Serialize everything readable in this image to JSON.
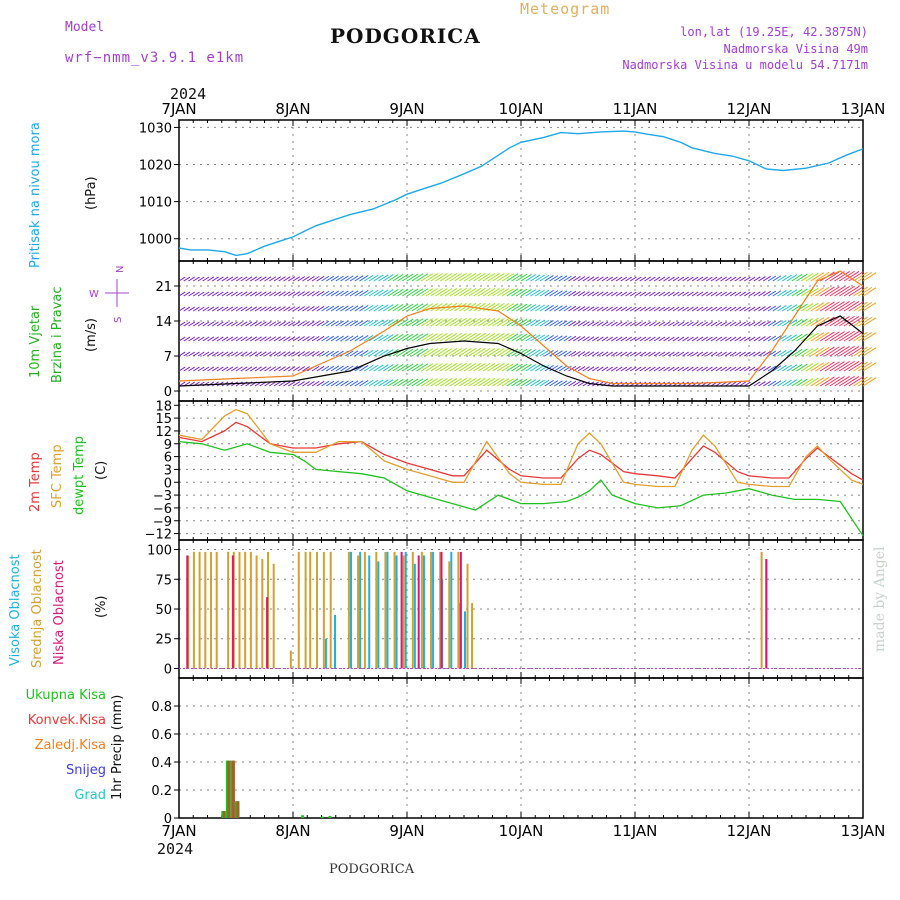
{
  "header": {
    "model_label": "Model",
    "model_name": "wrf−nmm_v3.9.1 e1km",
    "title": "PODGORICA",
    "meteogram": "Meteogram",
    "coords": "lon,lat (19.25E, 42.3875N)",
    "elevation": "Nadmorska Visina 49m",
    "model_elevation": "Nadmorska Visina u modelu 54.7171m",
    "year_top": "2024",
    "year_bottom": "2024",
    "footer": "PODGORICA",
    "watermark": "made by Angel"
  },
  "colors": {
    "pressure": "#1ea8e8",
    "wind_label": "#22b020",
    "temp2m": "#e83838",
    "sfc": "#e0a030",
    "dew": "#20c020",
    "cloud_high": "#20b0e0",
    "cloud_mid": "#d4a030",
    "cloud_low": "#d81878",
    "violet": "#a040d0",
    "meteogram": "#e0b060"
  },
  "chart_data": [
    {
      "type": "line",
      "id": "pressure",
      "ylabel": "Pritisak na nivou mora",
      "unit": "(hPa)",
      "x_ticks": [
        "7JAN",
        "8JAN",
        "9JAN",
        "10JAN",
        "11JAN",
        "12JAN",
        "13JAN"
      ],
      "x_range": [
        0,
        6
      ],
      "ylim": [
        994,
        1032
      ],
      "y_ticks": [
        1000,
        1010,
        1020,
        1030
      ],
      "grid": true,
      "series": [
        {
          "color": "#1ea8e8",
          "x": [
            0,
            0.1,
            0.25,
            0.4,
            0.5,
            0.6,
            0.75,
            0.9,
            1.0,
            1.1,
            1.2,
            1.35,
            1.5,
            1.7,
            1.9,
            2.0,
            2.15,
            2.3,
            2.5,
            2.65,
            2.8,
            2.9,
            3.0,
            3.2,
            3.35,
            3.5,
            3.7,
            3.9,
            4.0,
            4.1,
            4.25,
            4.4,
            4.5,
            4.7,
            4.85,
            5.0,
            5.15,
            5.3,
            5.5,
            5.7,
            5.85,
            6.0
          ],
          "y": [
            997.5,
            997,
            997,
            996.5,
            995.5,
            996,
            998,
            999.5,
            1000.5,
            1002,
            1003.5,
            1005,
            1006.5,
            1008,
            1010.5,
            1012,
            1013.5,
            1015,
            1017.5,
            1019.5,
            1022.5,
            1024.5,
            1026,
            1027.3,
            1028.6,
            1028.3,
            1028.8,
            1029,
            1028.8,
            1028.2,
            1027.5,
            1026,
            1024.5,
            1023,
            1022.3,
            1021,
            1018.8,
            1018.4,
            1019,
            1020.4,
            1022.5,
            1024.2
          ]
        }
      ]
    },
    {
      "type": "line",
      "id": "wind",
      "ylabel": "10m Vjetar",
      "ylabel2": "Brzina i Pravac",
      "unit": "(m/s)",
      "compass": {
        "n": "N",
        "s": "S",
        "e": "E",
        "w": "W"
      },
      "x_range": [
        0,
        6
      ],
      "ylim": [
        -2,
        26
      ],
      "y_ticks": [
        0,
        7,
        14,
        21
      ],
      "grid": true,
      "series": [
        {
          "name": "speed",
          "color": "#000000",
          "x": [
            0,
            0.5,
            1.0,
            1.5,
            1.8,
            2.0,
            2.2,
            2.5,
            2.8,
            3.0,
            3.2,
            3.4,
            3.6,
            3.8,
            4.0,
            4.5,
            5.0,
            5.2,
            5.4,
            5.6,
            5.8,
            6.0
          ],
          "y": [
            1.0,
            1.5,
            2.0,
            4.0,
            7.0,
            8.5,
            9.5,
            10.0,
            9.5,
            7.5,
            5.0,
            3.0,
            1.5,
            1.0,
            1.0,
            1.0,
            1.0,
            4.0,
            8.0,
            13.0,
            15.0,
            11.5
          ]
        },
        {
          "name": "gust",
          "color": "#f08020",
          "x": [
            0,
            0.5,
            1.0,
            1.2,
            1.5,
            1.8,
            2.0,
            2.2,
            2.5,
            2.8,
            3.0,
            3.2,
            3.4,
            3.6,
            3.8,
            4.0,
            4.5,
            5.0,
            5.2,
            5.4,
            5.6,
            5.8,
            6.0
          ],
          "y": [
            2.0,
            2.5,
            3.0,
            5.0,
            8.0,
            12.0,
            15.0,
            16.5,
            17.0,
            16.0,
            13.0,
            9.0,
            5.0,
            2.5,
            1.5,
            1.5,
            1.5,
            2.0,
            8.0,
            15.0,
            22.0,
            24.0,
            21.0
          ]
        }
      ]
    },
    {
      "type": "line",
      "id": "temperature",
      "ylabels": [
        "2m Temp",
        "SFC Temp",
        "dewpt Temp"
      ],
      "unit": "(C)",
      "x_range": [
        0,
        6
      ],
      "ylim": [
        -13.5,
        19
      ],
      "y_ticks": [
        -12,
        -9,
        -6,
        -3,
        0,
        3,
        6,
        9,
        12,
        15,
        18
      ],
      "grid": true,
      "series": [
        {
          "name": "2m Temp",
          "color": "#e83838",
          "x": [
            0,
            0.2,
            0.4,
            0.5,
            0.6,
            0.8,
            1.0,
            1.2,
            1.4,
            1.6,
            1.8,
            2.0,
            2.2,
            2.4,
            2.5,
            2.7,
            2.9,
            3.0,
            3.2,
            3.35,
            3.5,
            3.6,
            3.7,
            3.9,
            4.0,
            4.2,
            4.35,
            4.5,
            4.6,
            4.7,
            4.9,
            5.0,
            5.2,
            5.35,
            5.5,
            5.6,
            5.7,
            5.9,
            6.0
          ],
          "y": [
            10.5,
            9.5,
            12.0,
            14.0,
            13.0,
            9.0,
            8.0,
            8.0,
            9.0,
            9.5,
            6.5,
            4.5,
            3.0,
            1.5,
            1.5,
            7.5,
            3.0,
            1.5,
            1.0,
            1.0,
            5.5,
            7.5,
            6.5,
            2.5,
            2.0,
            1.5,
            1.0,
            5.5,
            8.5,
            7.0,
            2.5,
            1.5,
            1.0,
            1.0,
            5.5,
            8.0,
            6.0,
            2.0,
            0.5
          ]
        },
        {
          "name": "SFC Temp",
          "color": "#e0a030",
          "x": [
            0,
            0.2,
            0.4,
            0.5,
            0.6,
            0.8,
            1.0,
            1.2,
            1.4,
            1.6,
            1.8,
            2.0,
            2.2,
            2.4,
            2.5,
            2.7,
            2.9,
            3.0,
            3.2,
            3.35,
            3.5,
            3.6,
            3.7,
            3.9,
            4.0,
            4.2,
            4.35,
            4.5,
            4.6,
            4.7,
            4.9,
            5.0,
            5.2,
            5.35,
            5.5,
            5.6,
            5.7,
            5.9,
            6.0
          ],
          "y": [
            11.0,
            10.0,
            15.5,
            17.0,
            16.0,
            9.0,
            7.0,
            7.0,
            9.5,
            9.5,
            5.0,
            3.0,
            1.5,
            0.0,
            0.0,
            9.5,
            2.0,
            0.0,
            -0.5,
            -0.5,
            9.0,
            11.5,
            9.0,
            0.0,
            -0.5,
            -1.0,
            -1.0,
            7.5,
            11.0,
            8.5,
            0.0,
            -0.5,
            -1.0,
            -1.0,
            6.0,
            8.5,
            5.5,
            0.5,
            -0.5
          ]
        },
        {
          "name": "dewpt Temp",
          "color": "#20c020",
          "x": [
            0,
            0.2,
            0.4,
            0.6,
            0.8,
            1.0,
            1.1,
            1.2,
            1.4,
            1.6,
            1.8,
            2.0,
            2.2,
            2.4,
            2.6,
            2.8,
            3.0,
            3.2,
            3.4,
            3.5,
            3.6,
            3.7,
            3.8,
            4.0,
            4.2,
            4.4,
            4.6,
            4.8,
            5.0,
            5.2,
            5.4,
            5.6,
            5.8,
            6.0
          ],
          "y": [
            9.5,
            9.0,
            7.5,
            9.0,
            7.0,
            6.5,
            5.0,
            3.0,
            2.5,
            2.0,
            1.0,
            -2.0,
            -3.5,
            -5.0,
            -6.5,
            -3.0,
            -5.0,
            -5.0,
            -4.5,
            -3.5,
            -2.0,
            0.5,
            -3.0,
            -5.0,
            -6.0,
            -5.5,
            -3.0,
            -2.5,
            -1.5,
            -3.0,
            -4.0,
            -4.0,
            -4.5,
            -12.5
          ]
        }
      ]
    },
    {
      "type": "bar",
      "id": "cloud",
      "ylabels": [
        "Visoka Oblacnost",
        "Srednja Oblacnost",
        "Niska Oblacnost"
      ],
      "unit": "(%)",
      "x_range": [
        0,
        6
      ],
      "ylim": [
        -8,
        108
      ],
      "y_ticks": [
        0,
        25,
        50,
        75,
        100
      ],
      "grid": true,
      "series": [
        {
          "name": "Visoka Oblacnost",
          "color": "#20b0e0",
          "x": [
            1.28,
            1.36,
            1.5,
            1.58,
            1.66,
            1.74,
            1.82,
            1.9,
            1.98,
            2.06,
            2.14,
            2.22,
            2.3,
            2.38,
            2.46,
            2.5
          ],
          "y": [
            25,
            45,
            98,
            98,
            95,
            90,
            98,
            95,
            98,
            88,
            95,
            98,
            75,
            98,
            55,
            48
          ]
        },
        {
          "name": "Srednja Oblacnost",
          "color": "#d4a030",
          "x": [
            0.05,
            0.1,
            0.15,
            0.2,
            0.25,
            0.3,
            0.4,
            0.45,
            0.5,
            0.55,
            0.6,
            0.65,
            0.7,
            0.75,
            0.8,
            0.95,
            1.02,
            1.08,
            1.12,
            1.18,
            1.24,
            1.3,
            1.46,
            1.54,
            1.6,
            1.7,
            1.78,
            1.86,
            1.94,
            2.02,
            2.1,
            2.18,
            2.26,
            2.34,
            2.42,
            2.5,
            2.54,
            5.08,
            5.12
          ],
          "y": [
            95,
            98,
            98,
            98,
            98,
            98,
            98,
            98,
            98,
            98,
            98,
            95,
            92,
            98,
            88,
            15,
            98,
            98,
            98,
            98,
            98,
            98,
            98,
            95,
            98,
            98,
            98,
            98,
            95,
            98,
            98,
            98,
            98,
            90,
            98,
            88,
            55,
            98,
            92
          ]
        },
        {
          "name": "Niska Oblacnost",
          "color": "#d81878",
          "x": [
            0.02,
            0.42,
            0.72,
            1.9,
            2.05,
            2.25,
            2.42,
            5.1
          ],
          "y": [
            95,
            95,
            60,
            98,
            95,
            98,
            98,
            92
          ]
        }
      ]
    },
    {
      "type": "bar",
      "id": "precip",
      "ylabel": "1hr Precip (mm)",
      "labels": [
        "Ukupna Kisa",
        "Konvek.Kisa",
        "Zaledj.Kisa",
        "Snijeg",
        "Grad"
      ],
      "label_colors": [
        "#20c020",
        "#e83838",
        "#f08020",
        "#3c3ce0",
        "#20c8c0"
      ],
      "x_range": [
        0,
        6
      ],
      "ylim": [
        0,
        1.0
      ],
      "y_ticks": [
        0,
        0.2,
        0.4,
        0.6,
        0.8
      ],
      "grid": true,
      "series": [
        {
          "name": "Ukupna Kisa",
          "color": "#20c020",
          "x": [
            0.38,
            0.42,
            0.46,
            0.5,
            1.08,
            1.25,
            1.32
          ],
          "y": [
            0.05,
            0.41,
            0.41,
            0.12,
            0.02,
            0.01,
            0.015
          ]
        },
        {
          "name": "Zaledj.Kisa",
          "color": "#a06030",
          "x": [
            0.38,
            0.42,
            0.46,
            0.5
          ],
          "y": [
            0.05,
            0.41,
            0.41,
            0.12
          ]
        }
      ]
    }
  ]
}
